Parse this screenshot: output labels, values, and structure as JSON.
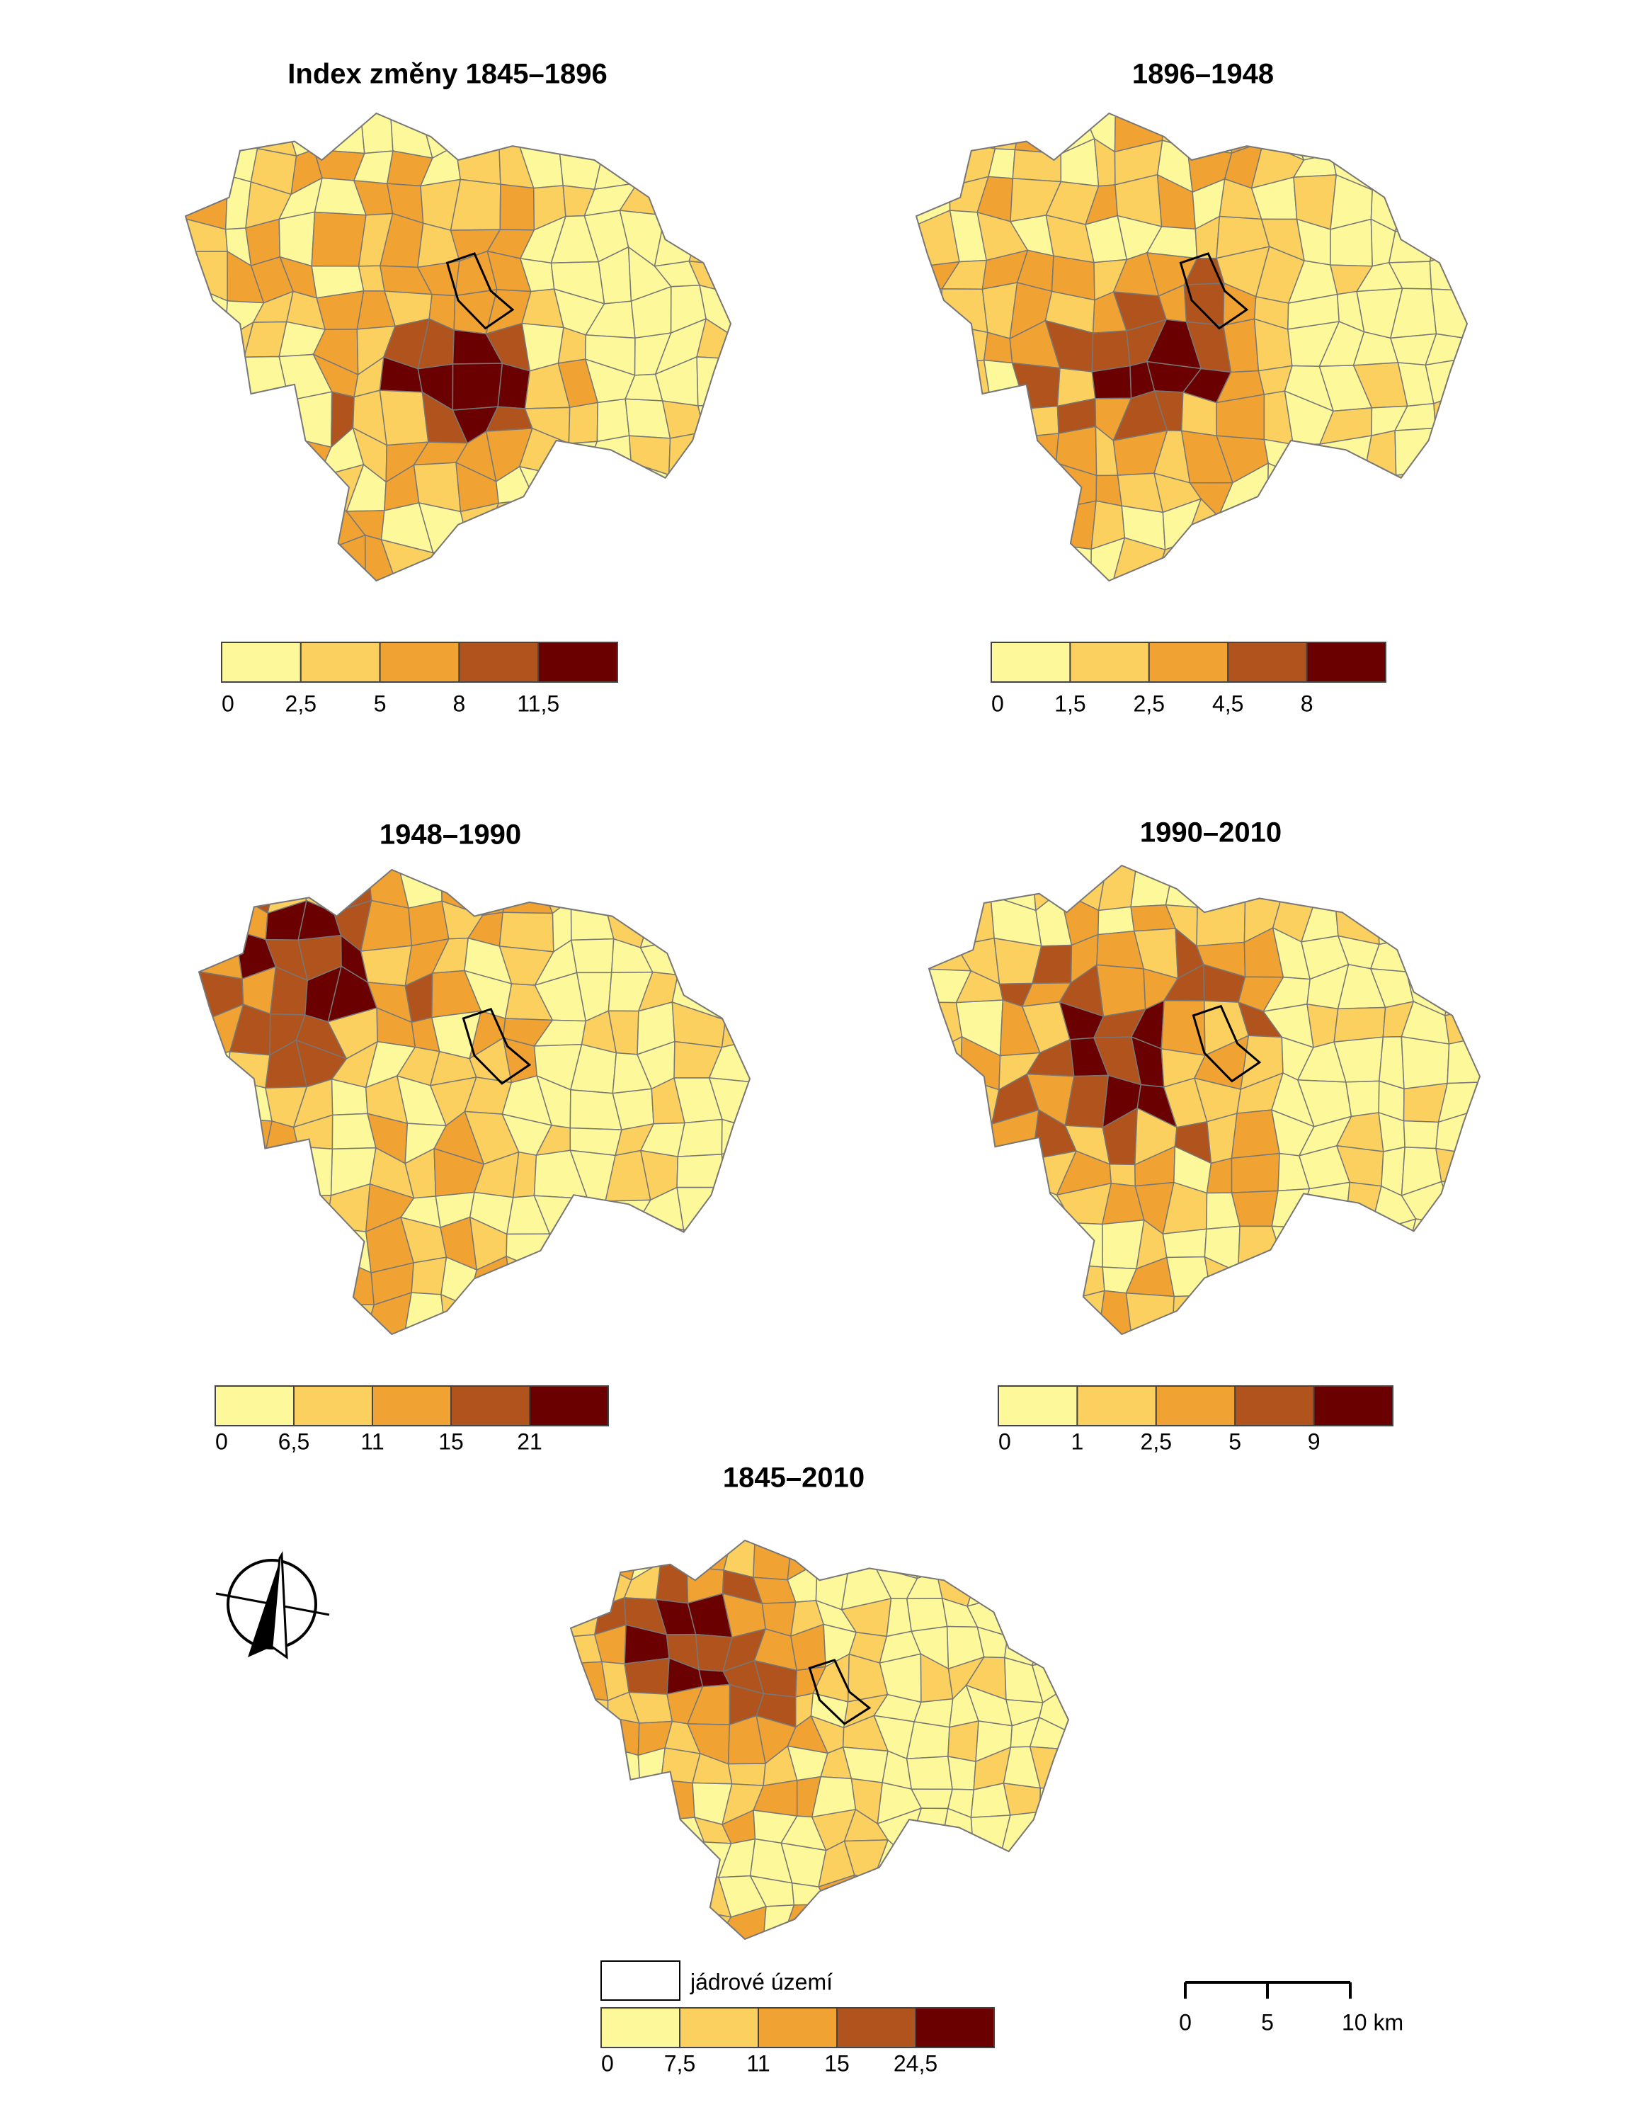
{
  "panels": [
    {
      "title": "Index změny 1845–1896",
      "legend_labels": [
        "0",
        "2,5",
        "5",
        "8",
        "11,5"
      ]
    },
    {
      "title": "1896–1948",
      "legend_labels": [
        "0",
        "1,5",
        "2,5",
        "4,5",
        "8"
      ]
    },
    {
      "title": "1948–1990",
      "legend_labels": [
        "0",
        "6,5",
        "11",
        "15",
        "21"
      ]
    },
    {
      "title": "1990–2010",
      "legend_labels": [
        "0",
        "1",
        "2,5",
        "5",
        "9"
      ]
    },
    {
      "title": "1845–2010",
      "legend_labels": [
        "0",
        "7,5",
        "11",
        "15",
        "24,5"
      ]
    }
  ],
  "legend_colors": [
    "#fdf99a",
    "#fbd05e",
    "#f0a333",
    "#b0531c",
    "#6b0000"
  ],
  "core_label": "jádrové území",
  "scale_labels": [
    "0",
    "5",
    "10 km"
  ]
}
